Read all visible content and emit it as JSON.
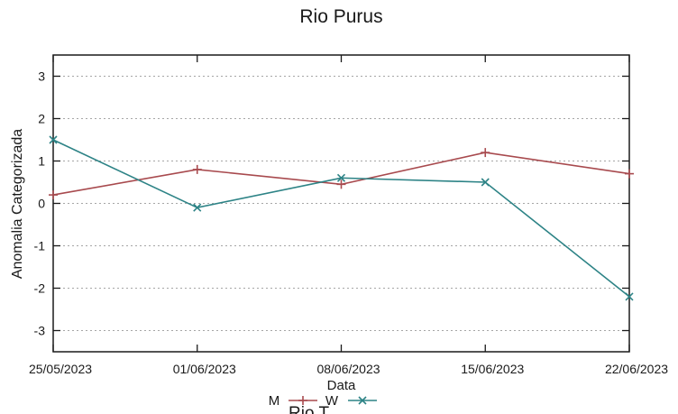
{
  "chart_data": {
    "type": "line",
    "title": "Rio Purus",
    "xlabel": "Data",
    "ylabel": "Anomalia Categorizada",
    "x_tick_labels": [
      "25/05/2023",
      "01/06/2023",
      "08/06/2023",
      "15/06/2023",
      "22/06/2023"
    ],
    "y_ticks": [
      3,
      2,
      1,
      0,
      -1,
      -2,
      -3
    ],
    "ylim": [
      -3.5,
      3.5
    ],
    "grid": {
      "horizontal": true,
      "style": "dotted",
      "color": "#a6a6a6"
    },
    "axis_color": "#1a1a1a",
    "legend_position": "bottom-center-clipped",
    "series": [
      {
        "label": "M",
        "color": "#a84a4e",
        "marker": "plus",
        "values": [
          0.2,
          0.8,
          0.45,
          1.2,
          0.7
        ]
      },
      {
        "label": "W",
        "color": "#2d8386",
        "marker": "cross",
        "values": [
          1.5,
          -0.1,
          0.6,
          0.5,
          -2.2
        ]
      }
    ]
  },
  "clipped_next_chart": {
    "title_fragment": "Rio T"
  }
}
